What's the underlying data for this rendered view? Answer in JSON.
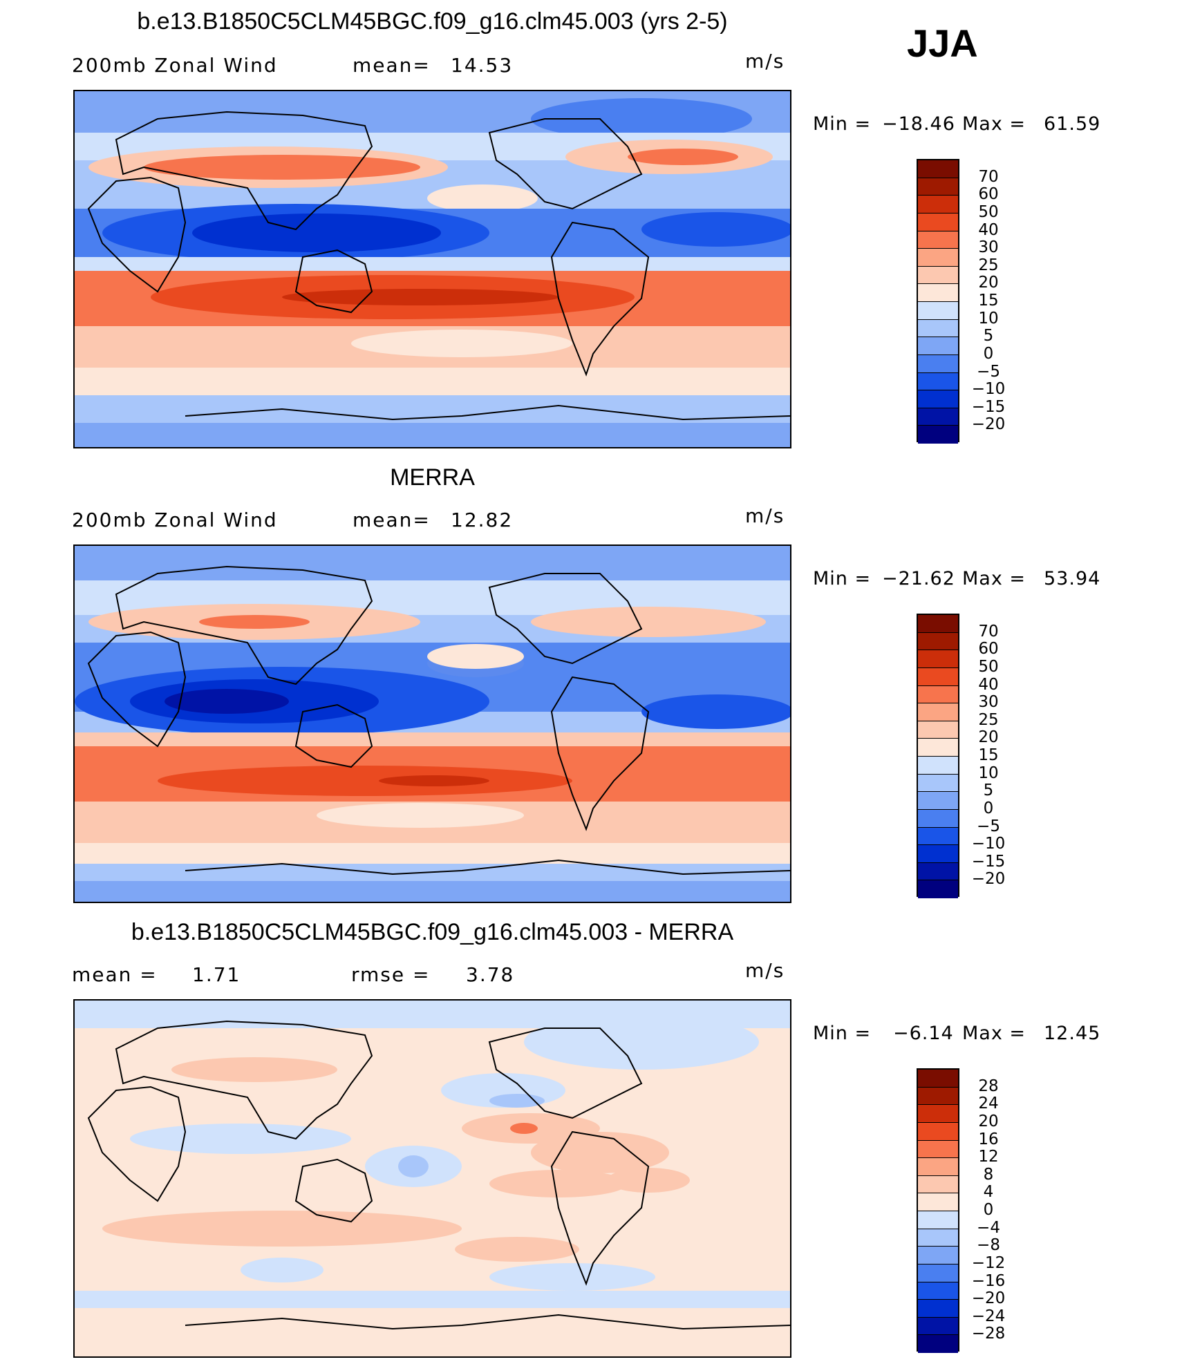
{
  "season": "JJA",
  "colors": {
    "scale": [
      "#00007f",
      "#0013a6",
      "#0030d0",
      "#1a55e8",
      "#4a7ff0",
      "#7ea6f5",
      "#a8c6fa",
      "#d0e2fc",
      "#fde7d9",
      "#fcc8b0",
      "#fba583",
      "#f7744d",
      "#ea4a20",
      "#cc2e0a",
      "#9e1a00",
      "#7a0d00"
    ]
  },
  "panels": [
    {
      "title": "b.e13.B1850C5CLM45BGC.f09_g16.clm45.003 (yrs 2-5)",
      "left_label": "200mb  Zonal  Wind",
      "stat_label": "mean=",
      "stat_value": "14.53",
      "units": "m/s",
      "min_label": "Min  =",
      "min_value": "−18.46",
      "max_label": "Max  =",
      "max_value": "61.59",
      "legend_ticks": [
        "70",
        "60",
        "50",
        "40",
        "30",
        "25",
        "20",
        "15",
        "10",
        "5",
        "0",
        "−5",
        "−10",
        "−15",
        "−20"
      ]
    },
    {
      "title": "MERRA",
      "left_label": "200mb  Zonal  Wind",
      "stat_label": "mean=",
      "stat_value": "12.82",
      "units": "m/s",
      "min_label": "Min  =",
      "min_value": "−21.62",
      "max_label": "Max  =",
      "max_value": "53.94",
      "legend_ticks": [
        "70",
        "60",
        "50",
        "40",
        "30",
        "25",
        "20",
        "15",
        "10",
        "5",
        "0",
        "−5",
        "−10",
        "−15",
        "−20"
      ]
    },
    {
      "title": "b.e13.B1850C5CLM45BGC.f09_g16.clm45.003 - MERRA",
      "left_label": "mean  =",
      "left_value": "1.71",
      "stat_label": "rmse  =",
      "stat_value": "3.78",
      "units": "m/s",
      "min_label": "Min  =",
      "min_value": "−6.14",
      "max_label": "Max  =",
      "max_value": "12.45",
      "legend_ticks": [
        "28",
        "24",
        "20",
        "16",
        "12",
        "8",
        "4",
        "0",
        "−4",
        "−8",
        "−12",
        "−16",
        "−20",
        "−24",
        "−28"
      ]
    }
  ]
}
